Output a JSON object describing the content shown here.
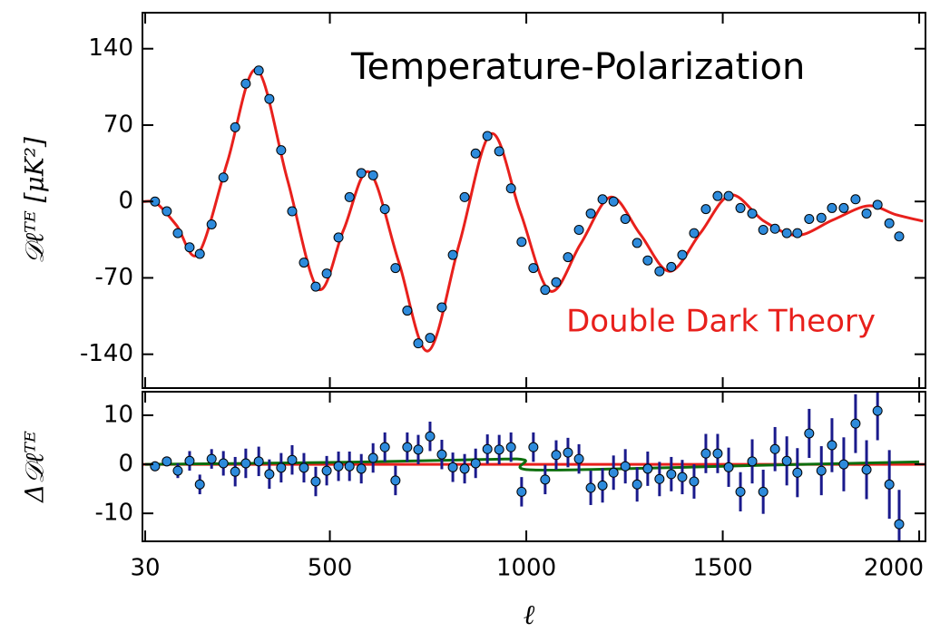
{
  "chart_data": [
    {
      "type": "scatter",
      "title": "Temperature-Polarization",
      "ylabel": "𝒟ℓᵀᴱ [μK²]",
      "xlim": [
        23,
        2016
      ],
      "ylim": [
        -171,
        173
      ],
      "xticks": [
        30,
        500,
        1000,
        1500,
        2000
      ],
      "xtick_labels": false,
      "yticks": [
        140,
        70,
        0,
        -70,
        -140
      ],
      "series": [
        {
          "name": "Double Dark Theory",
          "color": "#e8201c",
          "kind": "line",
          "x": [
            25,
            60,
            110,
            165,
            239,
            313,
            392,
            470,
            535,
            600,
            675,
            750,
            830,
            910,
            985,
            1060,
            1138,
            1215,
            1290,
            1365,
            1443,
            1520,
            1605,
            1690,
            1780,
            1870,
            1940,
            2010
          ],
          "values": [
            0,
            -2,
            -22,
            -48,
            36,
            121,
            20,
            -80,
            -26,
            27,
            -55,
            -137,
            -38,
            62,
            -10,
            -82,
            -39,
            4,
            -30,
            -64,
            -29,
            6,
            -18,
            -31,
            -17,
            -4,
            -12,
            -18
          ]
        },
        {
          "color": "#2e8bdc",
          "kind": "points",
          "x": [
            55,
            85,
            113,
            143,
            169,
            199,
            229,
            259,
            286,
            319,
            346,
            376,
            404,
            434,
            464,
            492,
            522,
            550,
            580,
            610,
            640,
            667,
            697,
            725,
            755,
            785,
            813,
            843,
            871,
            901,
            931,
            961,
            988,
            1018,
            1048,
            1076,
            1106,
            1134,
            1164,
            1194,
            1222,
            1252,
            1282,
            1309,
            1339,
            1369,
            1397,
            1427,
            1457,
            1487,
            1515,
            1545,
            1575,
            1603,
            1633,
            1663,
            1690,
            1720,
            1751,
            1778,
            1808,
            1838,
            1866,
            1894,
            1924,
            1949
          ],
          "values": [
            0,
            -9,
            -29,
            -42,
            -48,
            -21,
            22,
            68,
            108,
            120,
            94,
            47,
            -9,
            -56,
            -78,
            -66,
            -33,
            4,
            26,
            24,
            -7,
            -61,
            -100,
            -130,
            -125,
            -97,
            -49,
            4,
            44,
            60,
            46,
            12,
            -37,
            -61,
            -81,
            -74,
            -51,
            -26,
            -11,
            2,
            0,
            -16,
            -38,
            -54,
            -64,
            -60,
            -49,
            -29,
            -7,
            5,
            5,
            -6,
            -11,
            -26,
            -25,
            -29,
            -29,
            -16,
            -15,
            -6,
            -6,
            2,
            -11,
            -3,
            -20,
            -32
          ]
        }
      ]
    },
    {
      "type": "scatter",
      "ylabel": "Δ𝒟ℓᵀᴱ",
      "xlabel": "ℓ",
      "xlim": [
        23,
        2016
      ],
      "ylim": [
        -15.7,
        14.8
      ],
      "xticks": [
        30,
        500,
        1000,
        1500,
        2000
      ],
      "xtick_labels": true,
      "yticks": [
        10,
        0,
        -10
      ],
      "series": [
        {
          "color": "#e8201c",
          "kind": "line",
          "x": [
            23,
            2016
          ],
          "values": [
            0,
            0
          ]
        },
        {
          "color": "#0d6e0d",
          "kind": "line",
          "x": [
            30,
            300,
            600,
            900,
            995,
            1005,
            1300,
            1600,
            2000
          ],
          "values": [
            0,
            0.2,
            0.5,
            1,
            0.9,
            -1.1,
            -0.8,
            -0.2,
            0.5
          ]
        },
        {
          "color": "#2e8bdc",
          "kind": "points",
          "error_color": "#1a1a8c",
          "x": [
            55,
            85,
            113,
            143,
            169,
            199,
            229,
            259,
            286,
            319,
            346,
            376,
            404,
            434,
            464,
            492,
            522,
            550,
            580,
            610,
            640,
            667,
            697,
            725,
            755,
            785,
            813,
            843,
            871,
            901,
            931,
            961,
            988,
            1018,
            1048,
            1076,
            1106,
            1134,
            1164,
            1194,
            1222,
            1252,
            1282,
            1309,
            1339,
            1369,
            1397,
            1427,
            1457,
            1487,
            1515,
            1545,
            1575,
            1603,
            1633,
            1663,
            1690,
            1720,
            1751,
            1778,
            1808,
            1838,
            1866,
            1894,
            1924,
            1949
          ],
          "values": [
            -0.4,
            0.6,
            -1.3,
            0.7,
            -4.1,
            1.1,
            0.2,
            -1.5,
            0.2,
            0.6,
            -2,
            -0.7,
            0.9,
            -0.7,
            -3.5,
            -1.3,
            -0.4,
            -0.4,
            -0.9,
            1.3,
            3.5,
            -3.3,
            3.5,
            3,
            5.7,
            2,
            -0.6,
            -0.9,
            0.2,
            3.1,
            3,
            3.5,
            -5.6,
            3.5,
            -3.1,
            1.9,
            2.4,
            1.1,
            -4.8,
            -4.3,
            -1.7,
            -0.4,
            -4.1,
            -0.9,
            -3,
            -2,
            -2.6,
            -3.5,
            2.2,
            2.2,
            -0.6,
            -5.6,
            0.6,
            -5.6,
            3.1,
            0.7,
            -1.7,
            6.3,
            -1.3,
            3.9,
            0,
            8.3,
            -1.1,
            10.9,
            -4.1,
            -12.2
          ],
          "errors": [
            1,
            1,
            1.5,
            2,
            2,
            2,
            2.5,
            3,
            3,
            3,
            3,
            3,
            3,
            3,
            3,
            3,
            3,
            3,
            3,
            3,
            3,
            3,
            3,
            3,
            3,
            3,
            3,
            3,
            3,
            3,
            3,
            3,
            3,
            3,
            3,
            3,
            3,
            3,
            3.5,
            3.5,
            3.5,
            3.5,
            3.5,
            3.5,
            3.5,
            3.5,
            3.5,
            3.5,
            4,
            4,
            4,
            4,
            4.5,
            4.5,
            4.5,
            5,
            5,
            5,
            5,
            5.5,
            5.5,
            6,
            6,
            6,
            7,
            7
          ]
        }
      ]
    }
  ]
}
